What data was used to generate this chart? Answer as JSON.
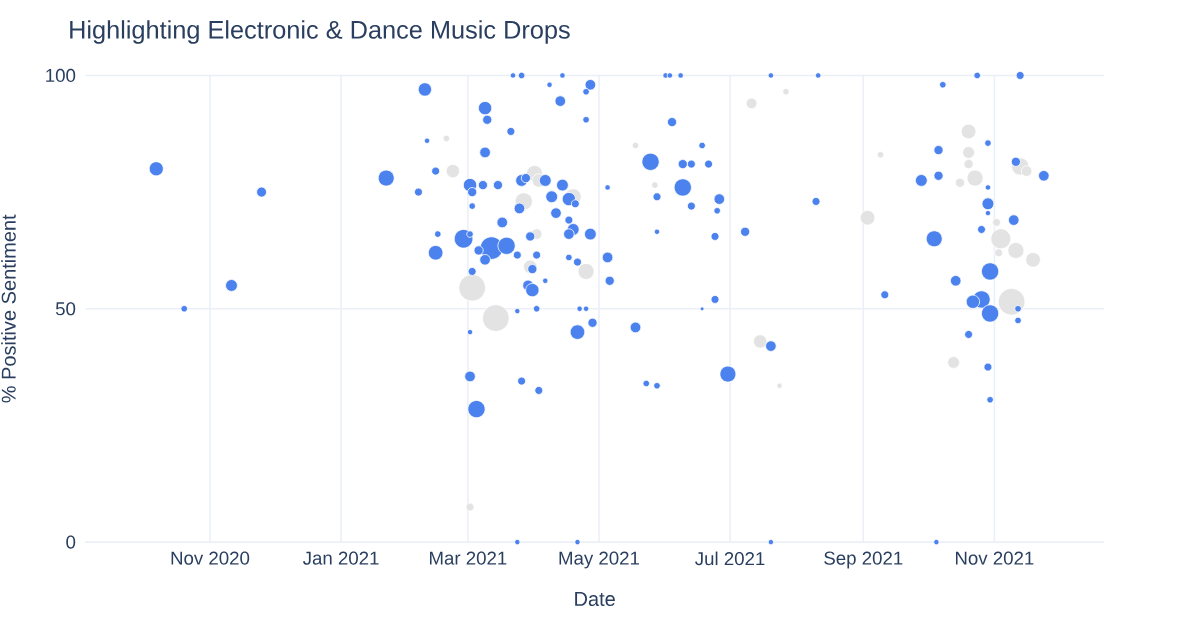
{
  "chart_data": {
    "type": "bubble",
    "title": "Highlighting Electronic & Dance Music Drops",
    "xlabel": "Date",
    "ylabel": "% Positive Sentiment",
    "xlim": [
      "2020-09-04",
      "2021-12-22"
    ],
    "ylim": [
      0,
      100
    ],
    "xticks": [
      {
        "value": "2020-11-01",
        "label": "Nov 2020"
      },
      {
        "value": "2021-01-01",
        "label": "Jan 2021"
      },
      {
        "value": "2021-03-01",
        "label": "Mar 2021"
      },
      {
        "value": "2021-05-01",
        "label": "May 2021"
      },
      {
        "value": "2021-07-01",
        "label": "Jul 2021"
      },
      {
        "value": "2021-09-01",
        "label": "Sep 2021"
      },
      {
        "value": "2021-11-01",
        "label": "Nov 2021"
      }
    ],
    "yticks": [
      0,
      50,
      100
    ],
    "grid": true,
    "series": [
      {
        "color": "#e3e3e3",
        "x": [
          "2021-02-19",
          "2021-02-22",
          "2021-04-01",
          "2021-04-03",
          "2021-03-27",
          "2021-04-19",
          "2021-04-02",
          "2021-03-30",
          "2021-04-25",
          "2021-03-03",
          "2021-03-14",
          "2021-03-02",
          "2021-05-18",
          "2021-05-27",
          "2021-07-11",
          "2021-07-27",
          "2021-09-09",
          "2021-09-03",
          "2021-07-15",
          "2021-07-24",
          "2021-10-20",
          "2021-10-20",
          "2021-10-20",
          "2021-10-23",
          "2021-10-16",
          "2021-11-13",
          "2021-11-16",
          "2021-11-04",
          "2021-11-11",
          "2021-11-19",
          "2021-11-03",
          "2021-11-09",
          "2021-10-13",
          "2021-11-02"
        ],
        "values": [
          86.5,
          79.5,
          79,
          77.5,
          73,
          74,
          66,
          59,
          58,
          54.5,
          48,
          7.5,
          85,
          76.5,
          94,
          96.5,
          83,
          69.5,
          43,
          33.5,
          88,
          83.5,
          81,
          78,
          77,
          80.5,
          79.5,
          65,
          62.5,
          60.5,
          62,
          51.5,
          38.5,
          68.5
        ],
        "sizes": [
          0.06,
          0.25,
          0.36,
          0.25,
          0.42,
          0.36,
          0.16,
          0.25,
          0.36,
          1,
          1,
          0.09,
          0.06,
          0.06,
          0.16,
          0.06,
          0.06,
          0.3,
          0.25,
          0.04,
          0.3,
          0.2,
          0.12,
          0.36,
          0.12,
          0.42,
          0.16,
          0.56,
          0.36,
          0.3,
          0.09,
          1,
          0.2,
          0.09
        ]
      },
      {
        "color": "#4b82ee",
        "x": [
          "2020-10-07",
          "2020-10-20",
          "2020-11-11",
          "2020-11-25",
          "2021-01-22",
          "2021-02-09",
          "2021-02-10",
          "2021-02-06",
          "2021-02-14",
          "2021-02-15",
          "2021-02-14",
          "2021-03-22",
          "2021-03-26",
          "2021-03-09",
          "2021-03-10",
          "2021-03-21",
          "2021-04-14",
          "2021-04-08",
          "2021-04-13",
          "2021-04-27",
          "2021-04-25",
          "2021-04-25",
          "2021-03-09",
          "2021-03-02",
          "2021-03-08",
          "2021-03-15",
          "2021-03-03",
          "2021-03-03",
          "2021-03-26",
          "2021-03-28",
          "2021-04-06",
          "2021-04-14",
          "2021-04-09",
          "2021-04-17",
          "2021-04-20",
          "2021-03-25",
          "2021-03-17",
          "2021-04-11",
          "2021-04-17",
          "2021-04-19",
          "2021-04-17",
          "2021-04-27",
          "2021-05-05",
          "2021-02-27",
          "2021-03-02",
          "2021-03-12",
          "2021-03-19",
          "2021-03-09",
          "2021-03-06",
          "2021-03-24",
          "2021-04-02",
          "2021-03-30",
          "2021-04-17",
          "2021-04-21",
          "2021-05-05",
          "2021-05-06",
          "2021-03-03",
          "2021-03-31",
          "2021-04-06",
          "2021-03-29",
          "2021-03-31",
          "2021-03-24",
          "2021-04-02",
          "2021-04-22",
          "2021-04-25",
          "2021-04-28",
          "2021-04-21",
          "2021-05-18",
          "2021-03-02",
          "2021-03-02",
          "2021-03-26",
          "2021-04-03",
          "2021-03-05",
          "2021-05-23",
          "2021-05-28",
          "2021-05-25",
          "2021-05-28",
          "2021-05-28",
          "2021-06-01",
          "2021-06-03",
          "2021-06-08",
          "2021-07-20",
          "2021-08-11",
          "2021-06-04",
          "2021-06-18",
          "2021-06-09",
          "2021-06-13",
          "2021-06-21",
          "2021-06-09",
          "2021-06-13",
          "2021-06-26",
          "2021-06-25",
          "2021-06-24",
          "2021-07-08",
          "2021-08-10",
          "2021-06-24",
          "2021-06-18",
          "2021-09-11",
          "2021-07-20",
          "2021-06-30",
          "2021-03-24",
          "2021-04-21",
          "2021-07-20",
          "2021-10-05",
          "2021-10-08",
          "2021-10-24",
          "2021-11-13",
          "2021-10-29",
          "2021-10-06",
          "2021-09-28",
          "2021-10-06",
          "2021-11-24",
          "2021-10-29",
          "2021-10-29",
          "2021-10-29",
          "2021-11-10",
          "2021-10-26",
          "2021-10-04",
          "2021-10-30",
          "2021-10-14",
          "2021-10-26",
          "2021-10-22",
          "2021-10-30",
          "2021-11-12",
          "2021-11-12",
          "2021-10-20",
          "2021-10-29",
          "2021-10-30",
          "2021-11-11"
        ],
        "values": [
          80,
          50,
          55,
          75,
          78,
          97,
          86,
          75,
          79.5,
          66,
          62,
          100,
          100,
          93,
          90.5,
          88,
          100,
          98,
          94.5,
          98,
          96.5,
          90.5,
          83.5,
          76.5,
          76.5,
          76.5,
          75,
          72,
          77.5,
          78,
          77.5,
          76.5,
          74,
          73.5,
          72.5,
          71.5,
          68.5,
          70.5,
          69,
          67,
          66,
          66,
          76,
          65,
          66,
          63,
          63.5,
          60.5,
          62.5,
          61.5,
          61.5,
          65.5,
          61,
          60,
          61,
          56,
          58,
          58.5,
          56,
          55,
          54,
          49.5,
          50,
          50,
          50,
          47,
          45,
          46,
          45,
          35.5,
          34.5,
          32.5,
          28.5,
          34,
          33.5,
          81.5,
          74,
          66.5,
          100,
          100,
          100,
          100,
          100,
          90,
          85,
          81,
          81,
          81,
          76,
          72,
          73.5,
          71,
          65.5,
          66.5,
          73,
          52,
          50,
          53,
          42,
          36,
          0,
          0,
          0,
          0,
          98,
          100,
          100,
          85.5,
          84,
          77.5,
          78.5,
          78.5,
          76,
          72.5,
          70.5,
          69,
          67,
          65,
          58,
          56,
          52,
          51.5,
          49,
          50,
          47.5,
          44.5,
          37.5,
          30.5,
          81.5
        ],
        "sizes": [
          0.28,
          0.06,
          0.2,
          0.14,
          0.36,
          0.25,
          0.04,
          0.09,
          0.09,
          0.06,
          0.3,
          0.04,
          0.06,
          0.25,
          0.12,
          0.09,
          0.04,
          0.04,
          0.16,
          0.16,
          0.06,
          0.06,
          0.16,
          0.25,
          0.12,
          0.12,
          0.12,
          0.06,
          0.2,
          0.12,
          0.2,
          0.2,
          0.2,
          0.25,
          0.09,
          0.16,
          0.16,
          0.16,
          0.09,
          0.2,
          0.16,
          0.2,
          0.04,
          0.49,
          0.06,
          0.72,
          0.42,
          0.16,
          0.12,
          0.09,
          0.09,
          0.12,
          0.06,
          0.09,
          0.16,
          0.12,
          0.09,
          0.12,
          0.04,
          0.16,
          0.25,
          0.04,
          0.06,
          0.04,
          0.04,
          0.12,
          0.3,
          0.16,
          0.04,
          0.16,
          0.09,
          0.09,
          0.42,
          0.06,
          0.06,
          0.42,
          0.09,
          0.04,
          0.04,
          0.04,
          0.04,
          0.04,
          0.04,
          0.12,
          0.06,
          0.12,
          0.09,
          0.09,
          0.42,
          0.09,
          0.16,
          0.06,
          0.09,
          0.12,
          0.09,
          0.09,
          0.02,
          0.09,
          0.16,
          0.36,
          0.04,
          0.04,
          0.04,
          0.04,
          0.06,
          0.06,
          0.09,
          0.06,
          0.12,
          0.2,
          0.12,
          0.16,
          0.04,
          0.2,
          0.04,
          0.16,
          0.09,
          0.36,
          0.42,
          0.16,
          0.42,
          0.25,
          0.42,
          0.06,
          0.06,
          0.09,
          0.09,
          0.06,
          0.12
        ]
      }
    ]
  }
}
